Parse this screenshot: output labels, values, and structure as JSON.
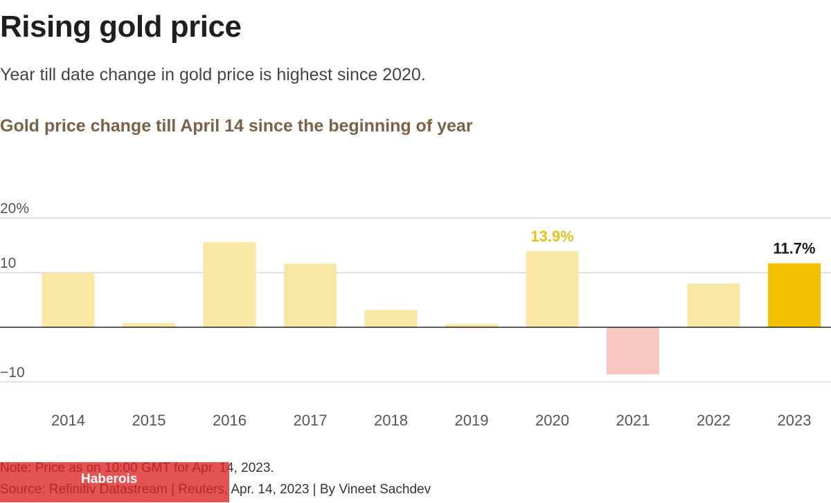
{
  "header": {
    "title": "Rising gold price",
    "subtitle": "Year till date change in gold price is highest since 2020."
  },
  "chart_data": {
    "type": "bar",
    "title": "Gold price change till April 14 since the beginning of year",
    "categories": [
      "2014",
      "2015",
      "2016",
      "2017",
      "2018",
      "2019",
      "2020",
      "2021",
      "2022",
      "2023"
    ],
    "values": [
      10.0,
      0.8,
      15.6,
      11.6,
      3.2,
      0.6,
      13.9,
      -8.6,
      8.0,
      11.7
    ],
    "ylim": [
      -10,
      20
    ],
    "yticks": [
      20,
      10,
      -10
    ],
    "ytick_labels": [
      "20%",
      "10",
      "−10"
    ],
    "grid": true,
    "annotations": [
      {
        "category": "2020",
        "label": "13.9%",
        "color": "#e0c31e"
      },
      {
        "category": "2023",
        "label": "11.7%",
        "color": "#1a1a1a"
      }
    ],
    "colors": {
      "default": "#f9e8a5",
      "negative": "#f8c7c2",
      "highlight": "#f2c100",
      "highlight_category": "2023",
      "grid": "#cfcfcf",
      "baseline": "#222222",
      "tick_label": "#555555"
    }
  },
  "footer": {
    "note": "Note: Price as on 10:00 GMT for Apr. 14, 2023.",
    "source": "Source: Refinitiv Datastream | Reuters, Apr. 14, 2023 | By Vineet Sachdev"
  },
  "overlay": {
    "label": "Haberois",
    "color": "#dd2323"
  }
}
